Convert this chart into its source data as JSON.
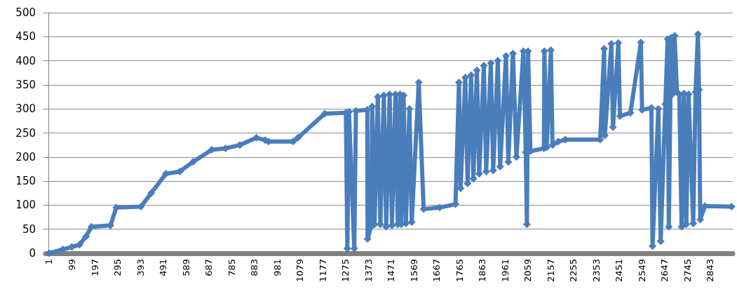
{
  "chart_data": {
    "type": "line",
    "color": "#4a7ebb",
    "marker": "diamond",
    "line_style": "solid",
    "grid": "y",
    "xlim": [
      -14,
      2940
    ],
    "xticks": [
      1,
      99,
      197,
      295,
      393,
      491,
      589,
      687,
      785,
      883,
      981,
      1079,
      1177,
      1275,
      1373,
      1471,
      1569,
      1667,
      1765,
      1863,
      1961,
      2059,
      2157,
      2255,
      2353,
      2451,
      2549,
      2647,
      2745,
      2843
    ],
    "ylim": [
      0,
      500
    ],
    "yticks": [
      0,
      50,
      100,
      150,
      200,
      250,
      300,
      350,
      400,
      450,
      500
    ],
    "x": [
      1,
      60,
      99,
      132,
      160,
      183,
      265,
      290,
      396,
      440,
      503,
      563,
      620,
      700,
      760,
      821,
      892,
      930,
      944,
      1050,
      1071,
      1186,
      1277,
      1283,
      1290,
      1313,
      1320,
      1369,
      1370,
      1385,
      1390,
      1400,
      1414,
      1425,
      1440,
      1450,
      1465,
      1475,
      1490,
      1500,
      1510,
      1515,
      1525,
      1535,
      1550,
      1560,
      1590,
      1611,
      1680,
      1748,
      1763,
      1770,
      1790,
      1800,
      1815,
      1825,
      1840,
      1850,
      1870,
      1880,
      1900,
      1910,
      1930,
      1940,
      1965,
      1975,
      1995,
      2010,
      2040,
      2050,
      2055,
      2060,
      2070,
      2128,
      2130,
      2140,
      2158,
      2165,
      2190,
      2220,
      2370,
      2387,
      2390,
      2418,
      2425,
      2448,
      2455,
      2500,
      2545,
      2550,
      2590,
      2595,
      2620,
      2630,
      2650,
      2660,
      2665,
      2675,
      2680,
      2690,
      2700,
      2710,
      2720,
      2730,
      2740,
      2750,
      2770,
      2780,
      2790,
      2795,
      2800,
      2820,
      2935
    ],
    "values": [
      0,
      8,
      13,
      18,
      35,
      55,
      58,
      95,
      97,
      125,
      165,
      170,
      190,
      215,
      218,
      225,
      240,
      235,
      232,
      232,
      240,
      290,
      292,
      10,
      294,
      10,
      296,
      298,
      30,
      55,
      305,
      60,
      325,
      60,
      328,
      55,
      330,
      58,
      330,
      60,
      330,
      60,
      328,
      62,
      300,
      65,
      355,
      92,
      95,
      102,
      355,
      135,
      365,
      145,
      370,
      155,
      380,
      165,
      390,
      170,
      395,
      172,
      400,
      180,
      410,
      190,
      415,
      200,
      420,
      210,
      60,
      420,
      212,
      218,
      420,
      220,
      422,
      225,
      232,
      236,
      236,
      425,
      245,
      435,
      262,
      437,
      285,
      292,
      438,
      298,
      302,
      15,
      300,
      25,
      310,
      445,
      55,
      448,
      330,
      452,
      335,
      330,
      55,
      332,
      60,
      330,
      62,
      335,
      455,
      340,
      70,
      98,
      97
    ]
  }
}
